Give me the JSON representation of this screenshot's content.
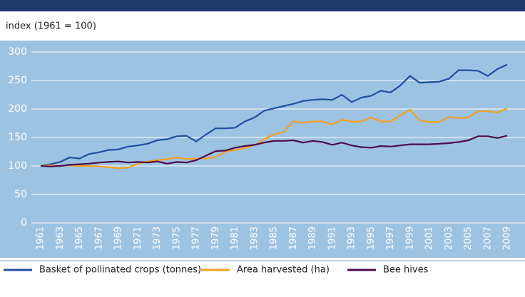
{
  "chart_data": {
    "type": "line",
    "ylabel": "index (1961 = 100)",
    "categories": [
      "1961",
      null,
      "1963",
      null,
      "1965",
      null,
      "1967",
      null,
      "1969",
      null,
      "1971",
      null,
      "1973",
      null,
      "1975",
      null,
      "1977",
      null,
      "1979",
      null,
      "1981",
      null,
      "1983",
      null,
      "1985",
      null,
      "1987",
      null,
      "1989",
      null,
      "1991",
      null,
      "1993",
      null,
      "1995",
      null,
      "1997",
      null,
      "1999",
      null,
      "2001",
      null,
      "2003",
      null,
      "2005",
      null,
      "2007",
      null,
      "2009"
    ],
    "series": [
      {
        "name": "Basket of pollinated crops (tonnes)",
        "color": "#1f4ea3",
        "values": [
          100,
          103,
          107,
          115,
          113,
          121,
          124,
          128,
          129,
          134,
          136,
          139,
          145,
          147,
          152,
          153,
          143,
          155,
          166,
          166,
          167,
          178,
          185,
          197,
          201,
          205,
          209,
          214,
          216,
          217,
          216,
          225,
          212,
          220,
          223,
          232,
          229,
          241,
          258,
          246,
          247,
          248,
          253,
          268,
          268,
          267,
          258,
          270,
          278
        ]
      },
      {
        "name": "Area harvested (ha)",
        "color": "#f5a01e",
        "values": [
          100,
          101,
          100,
          101,
          100,
          100,
          99,
          98,
          96,
          97,
          104,
          108,
          110,
          112,
          115,
          112,
          113,
          113,
          116,
          125,
          128,
          131,
          137,
          147,
          155,
          160,
          178,
          176,
          178,
          178,
          173,
          181,
          178,
          178,
          185,
          178,
          178,
          189,
          199,
          180,
          177,
          177,
          186,
          184,
          185,
          196,
          196,
          194,
          201
        ]
      },
      {
        "name": "Bee hives",
        "color": "#4d0a4a",
        "values": [
          100,
          99,
          100,
          102,
          103,
          104,
          106,
          107,
          108,
          106,
          107,
          106,
          108,
          104,
          107,
          106,
          110,
          118,
          126,
          127,
          132,
          135,
          137,
          141,
          144,
          144,
          145,
          141,
          144,
          142,
          137,
          141,
          136,
          133,
          132,
          135,
          134,
          136,
          138,
          138,
          138,
          139,
          140,
          142,
          145,
          152,
          152,
          149,
          153
        ]
      }
    ],
    "ylim": [
      0,
      300
    ],
    "yticks": [
      0,
      50,
      100,
      150,
      200,
      250,
      300
    ],
    "grid": true
  }
}
